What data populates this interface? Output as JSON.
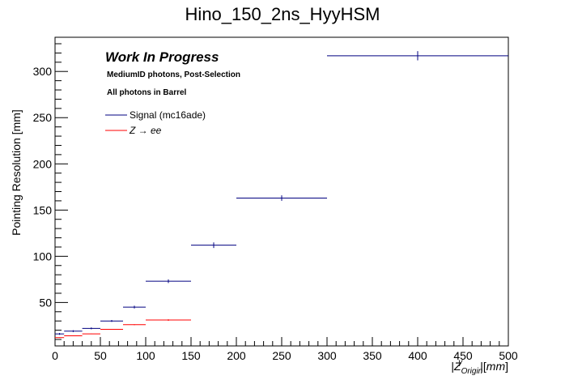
{
  "chart_data": {
    "type": "scatter",
    "title": "Hino_150_2ns_HyyHSM",
    "xlabel": "|Z_{Origin}^{γ}|[mm]",
    "ylabel": "Pointing Resolution [mm]",
    "xlim": [
      0,
      500
    ],
    "ylim": [
      3,
      337
    ],
    "x_ticks": [
      "0",
      "50",
      "100",
      "150",
      "200",
      "250",
      "300",
      "350",
      "400",
      "450",
      "500"
    ],
    "y_ticks": [
      "50",
      "100",
      "150",
      "200",
      "250",
      "300"
    ],
    "annotations": {
      "wip": "Work In Progress",
      "selection": "MediumID photons, Post-Selection",
      "region": "All photons in Barrel"
    },
    "legend_position": "top-left",
    "series": [
      {
        "name": "Signal (mc16ade)",
        "color": "#000080",
        "points": [
          {
            "x": 5,
            "xlo": 0,
            "xhi": 10,
            "y": 16,
            "yerr": 1
          },
          {
            "x": 20,
            "xlo": 10,
            "xhi": 30,
            "y": 19,
            "yerr": 1
          },
          {
            "x": 40,
            "xlo": 30,
            "xhi": 50,
            "y": 22,
            "yerr": 1
          },
          {
            "x": 62.5,
            "xlo": 50,
            "xhi": 75,
            "y": 30,
            "yerr": 1
          },
          {
            "x": 87.5,
            "xlo": 75,
            "xhi": 100,
            "y": 45,
            "yerr": 1.5
          },
          {
            "x": 125,
            "xlo": 100,
            "xhi": 150,
            "y": 73,
            "yerr": 2
          },
          {
            "x": 175,
            "xlo": 150,
            "xhi": 200,
            "y": 112,
            "yerr": 3
          },
          {
            "x": 250,
            "xlo": 200,
            "xhi": 300,
            "y": 163,
            "yerr": 3
          },
          {
            "x": 400,
            "xlo": 300,
            "xhi": 500,
            "y": 317,
            "yerr": 5
          }
        ]
      },
      {
        "name": "Z → ee",
        "color": "#ff0000",
        "points": [
          {
            "x": 5,
            "xlo": 0,
            "xhi": 10,
            "y": 12,
            "yerr": 0.3
          },
          {
            "x": 20,
            "xlo": 10,
            "xhi": 30,
            "y": 14,
            "yerr": 0.3
          },
          {
            "x": 40,
            "xlo": 30,
            "xhi": 50,
            "y": 16,
            "yerr": 0.3
          },
          {
            "x": 62.5,
            "xlo": 50,
            "xhi": 75,
            "y": 21,
            "yerr": 0.4
          },
          {
            "x": 87.5,
            "xlo": 75,
            "xhi": 100,
            "y": 26,
            "yerr": 0.5
          },
          {
            "x": 125,
            "xlo": 100,
            "xhi": 150,
            "y": 31,
            "yerr": 0.8
          }
        ]
      }
    ]
  }
}
